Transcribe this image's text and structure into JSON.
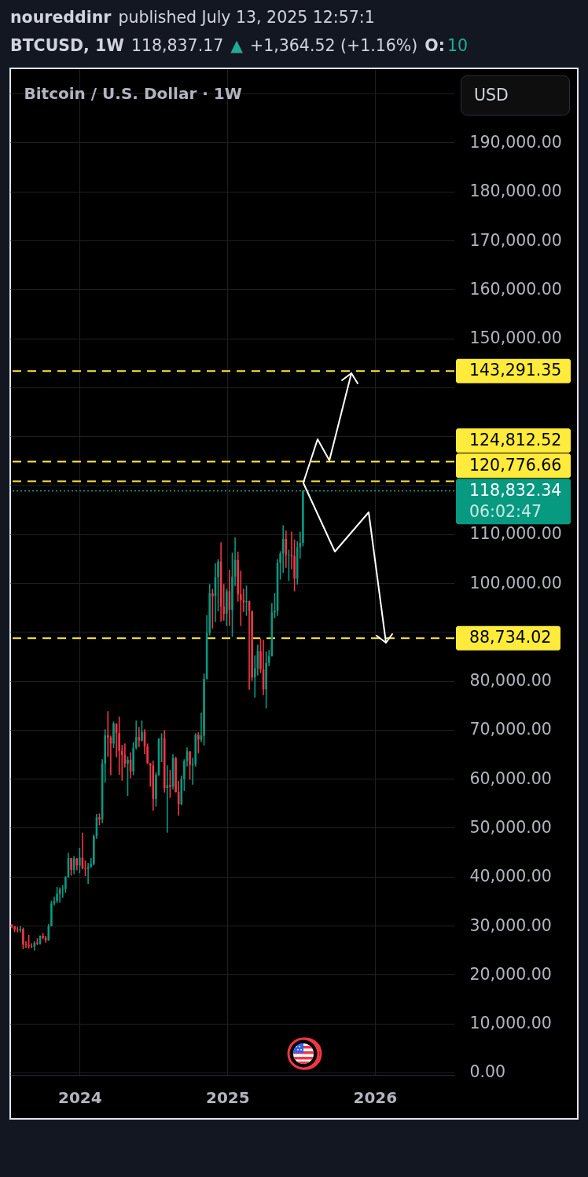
{
  "chart_data": {
    "type": "candlestick",
    "title": "Bitcoin / U.S. Dollar · 1W",
    "x": [
      "2023-07-17",
      "2023-07-24",
      "2023-07-31",
      "2023-08-07",
      "2023-08-14",
      "2023-08-21",
      "2023-08-28",
      "2023-09-04",
      "2023-09-11",
      "2023-09-18",
      "2023-09-25",
      "2023-10-02",
      "2023-10-09",
      "2023-10-16",
      "2023-10-23",
      "2023-10-30",
      "2023-11-06",
      "2023-11-13",
      "2023-11-20",
      "2023-11-27",
      "2023-12-04",
      "2023-12-11",
      "2023-12-18",
      "2023-12-25",
      "2024-01-01",
      "2024-01-08",
      "2024-01-15",
      "2024-01-22",
      "2024-01-29",
      "2024-02-05",
      "2024-02-12",
      "2024-02-19",
      "2024-02-26",
      "2024-03-04",
      "2024-03-11",
      "2024-03-18",
      "2024-03-25",
      "2024-04-01",
      "2024-04-08",
      "2024-04-15",
      "2024-04-22",
      "2024-04-29",
      "2024-05-06",
      "2024-05-13",
      "2024-05-20",
      "2024-05-27",
      "2024-06-03",
      "2024-06-10",
      "2024-06-17",
      "2024-06-24",
      "2024-07-01",
      "2024-07-08",
      "2024-07-15",
      "2024-07-22",
      "2024-07-29",
      "2024-08-05",
      "2024-08-12",
      "2024-08-19",
      "2024-08-26",
      "2024-09-02",
      "2024-09-09",
      "2024-09-16",
      "2024-09-23",
      "2024-09-30",
      "2024-10-07",
      "2024-10-14",
      "2024-10-21",
      "2024-10-28",
      "2024-11-04",
      "2024-11-11",
      "2024-11-18",
      "2024-11-25",
      "2024-12-02",
      "2024-12-09",
      "2024-12-16",
      "2024-12-23",
      "2024-12-30",
      "2025-01-06",
      "2025-01-13",
      "2025-01-20",
      "2025-01-27",
      "2025-02-03",
      "2025-02-10",
      "2025-02-17",
      "2025-02-24",
      "2025-03-03",
      "2025-03-10",
      "2025-03-17",
      "2025-03-24",
      "2025-03-31",
      "2025-04-07",
      "2025-04-14",
      "2025-04-21",
      "2025-04-28",
      "2025-05-05",
      "2025-05-12",
      "2025-05-19",
      "2025-05-26",
      "2025-06-02",
      "2025-06-09",
      "2025-06-16",
      "2025-06-23",
      "2025-06-30",
      "2025-07-07"
    ],
    "ohlc": [
      [
        30200,
        30300,
        29500,
        29800
      ],
      [
        29800,
        29900,
        28700,
        29200
      ],
      [
        29200,
        29800,
        28600,
        29000
      ],
      [
        29000,
        29900,
        28600,
        29300
      ],
      [
        29300,
        29600,
        25200,
        26100
      ],
      [
        26100,
        26800,
        25400,
        26000
      ],
      [
        26000,
        28100,
        25300,
        25800
      ],
      [
        25800,
        26400,
        25400,
        25700
      ],
      [
        25700,
        26800,
        24900,
        26500
      ],
      [
        26500,
        27400,
        26000,
        26300
      ],
      [
        26300,
        28000,
        26100,
        27900
      ],
      [
        27900,
        28500,
        27200,
        27500
      ],
      [
        27500,
        27900,
        26500,
        27000
      ],
      [
        27000,
        30300,
        26900,
        29900
      ],
      [
        29900,
        35100,
        29800,
        34500
      ],
      [
        34500,
        35900,
        34100,
        35000
      ],
      [
        35000,
        37900,
        34600,
        36500
      ],
      [
        36500,
        37800,
        34700,
        37400
      ],
      [
        37400,
        38300,
        35700,
        37500
      ],
      [
        37500,
        40100,
        36700,
        39900
      ],
      [
        39900,
        44900,
        39800,
        43800
      ],
      [
        43800,
        43800,
        40200,
        41400
      ],
      [
        41400,
        44200,
        40500,
        43700
      ],
      [
        43700,
        43800,
        41300,
        42300
      ],
      [
        42300,
        45900,
        40700,
        43900
      ],
      [
        43900,
        49000,
        41500,
        41700
      ],
      [
        41700,
        43300,
        40100,
        41600
      ],
      [
        41600,
        42800,
        38500,
        42000
      ],
      [
        42000,
        43800,
        41800,
        42600
      ],
      [
        42600,
        48600,
        42300,
        48300
      ],
      [
        48300,
        52800,
        47700,
        52100
      ],
      [
        52100,
        52900,
        50500,
        51700
      ],
      [
        51700,
        64000,
        50900,
        63100
      ],
      [
        63100,
        70100,
        59200,
        68900
      ],
      [
        68900,
        73800,
        64500,
        68400
      ],
      [
        68400,
        68800,
        60700,
        67200
      ],
      [
        67200,
        71700,
        66300,
        71300
      ],
      [
        71300,
        71300,
        64400,
        69300
      ],
      [
        69300,
        72700,
        60800,
        65700
      ],
      [
        65700,
        66900,
        59600,
        64900
      ],
      [
        64900,
        67200,
        62300,
        63100
      ],
      [
        63100,
        64600,
        56500,
        63900
      ],
      [
        63900,
        65400,
        60100,
        61500
      ],
      [
        61500,
        67500,
        60700,
        66300
      ],
      [
        66300,
        71900,
        66000,
        68500
      ],
      [
        68500,
        70600,
        66500,
        67800
      ],
      [
        67800,
        71900,
        67600,
        69600
      ],
      [
        69600,
        70100,
        65000,
        66600
      ],
      [
        66600,
        67200,
        63000,
        63200
      ],
      [
        63200,
        63200,
        58400,
        62700
      ],
      [
        62700,
        63700,
        53500,
        55900
      ],
      [
        55900,
        61300,
        54300,
        60800
      ],
      [
        60800,
        68300,
        60600,
        68200
      ],
      [
        68200,
        69300,
        63400,
        68300
      ],
      [
        68300,
        69900,
        57200,
        58100
      ],
      [
        58100,
        62700,
        49000,
        58700
      ],
      [
        58700,
        61800,
        56100,
        58400
      ],
      [
        58400,
        65000,
        57800,
        64200
      ],
      [
        64200,
        64500,
        57200,
        57300
      ],
      [
        57300,
        59600,
        52500,
        54800
      ],
      [
        54800,
        60600,
        54600,
        60000
      ],
      [
        60000,
        64000,
        57500,
        63600
      ],
      [
        63600,
        66400,
        62500,
        65600
      ],
      [
        65600,
        65600,
        59800,
        62800
      ],
      [
        62800,
        64300,
        58800,
        63000
      ],
      [
        63000,
        69300,
        62500,
        69000
      ],
      [
        69000,
        69500,
        65200,
        68000
      ],
      [
        68000,
        73500,
        67500,
        68800
      ],
      [
        68800,
        81500,
        66800,
        80400
      ],
      [
        80400,
        93400,
        80300,
        89800
      ],
      [
        89800,
        99800,
        89300,
        97900
      ],
      [
        97900,
        98800,
        90700,
        97300
      ],
      [
        97300,
        104000,
        92000,
        101200
      ],
      [
        101200,
        104900,
        94200,
        104400
      ],
      [
        104400,
        108300,
        92100,
        95200
      ],
      [
        95200,
        99800,
        92300,
        93700
      ],
      [
        93700,
        98800,
        91200,
        98300
      ],
      [
        98300,
        102700,
        91200,
        94500
      ],
      [
        94500,
        106200,
        89000,
        101300
      ],
      [
        101300,
        109300,
        99400,
        104700
      ],
      [
        104700,
        106400,
        96200,
        97700
      ],
      [
        97700,
        102500,
        91200,
        96500
      ],
      [
        96500,
        98800,
        94100,
        96100
      ],
      [
        96100,
        99500,
        93300,
        96300
      ],
      [
        96300,
        96400,
        78200,
        94300
      ],
      [
        94300,
        94300,
        80000,
        80700
      ],
      [
        80700,
        85200,
        76600,
        82600
      ],
      [
        82600,
        87400,
        81100,
        86100
      ],
      [
        86100,
        88700,
        81600,
        82400
      ],
      [
        82400,
        88400,
        77100,
        78300
      ],
      [
        78300,
        86000,
        74400,
        83700
      ],
      [
        83700,
        86300,
        83000,
        85100
      ],
      [
        85100,
        95900,
        85000,
        94000
      ],
      [
        94000,
        97900,
        92800,
        94300
      ],
      [
        94300,
        104900,
        93300,
        104100
      ],
      [
        104100,
        106500,
        100700,
        106000
      ],
      [
        106000,
        111800,
        102100,
        109000
      ],
      [
        109000,
        110700,
        103100,
        105700
      ],
      [
        105700,
        106800,
        100400,
        105800
      ],
      [
        105800,
        110500,
        102800,
        105500
      ],
      [
        105500,
        108900,
        98300,
        100900
      ],
      [
        100900,
        108500,
        99700,
        107300
      ],
      [
        107300,
        110500,
        105000,
        108200
      ],
      [
        108200,
        118950,
        107500,
        118832.34
      ]
    ],
    "colors": [
      "#f23645",
      "#f23645",
      "#f23645",
      "#089981",
      "#f23645",
      "#f23645",
      "#f23645",
      "#f23645",
      "#089981",
      "#f23645",
      "#089981",
      "#f23645",
      "#f23645",
      "#089981",
      "#089981",
      "#089981",
      "#089981",
      "#089981",
      "#089981",
      "#089981",
      "#089981",
      "#f23645",
      "#089981",
      "#f23645",
      "#089981",
      "#f23645",
      "#f23645",
      "#089981",
      "#089981",
      "#089981",
      "#089981",
      "#f23645",
      "#089981",
      "#089981",
      "#f23645",
      "#f23645",
      "#089981",
      "#f23645",
      "#f23645",
      "#f23645",
      "#f23645",
      "#089981",
      "#f23645",
      "#089981",
      "#089981",
      "#f23645",
      "#089981",
      "#f23645",
      "#f23645",
      "#f23645",
      "#f23645",
      "#089981",
      "#089981",
      "#089981",
      "#f23645",
      "#089981",
      "#f23645",
      "#089981",
      "#f23645",
      "#f23645",
      "#089981",
      "#089981",
      "#089981",
      "#f23645",
      "#089981",
      "#089981",
      "#f23645",
      "#089981",
      "#089981",
      "#089981",
      "#089981",
      "#f23645",
      "#089981",
      "#089981",
      "#f23645",
      "#f23645",
      "#089981",
      "#f23645",
      "#089981",
      "#089981",
      "#f23645",
      "#f23645",
      "#f23645",
      "#089981",
      "#f23645",
      "#f23645",
      "#089981",
      "#089981",
      "#f23645",
      "#f23645",
      "#089981",
      "#089981",
      "#089981",
      "#089981",
      "#089981",
      "#089981",
      "#089981",
      "#f23645",
      "#089981",
      "#f23645",
      "#f23645",
      "#089981",
      "#089981",
      "#089981"
    ],
    "xlim": [
      "2023-07-13",
      "2026-07-17"
    ],
    "xticks": [
      {
        "value": "2024-01-01",
        "label": "2024"
      },
      {
        "value": "2025-01-01",
        "label": "2025"
      },
      {
        "value": "2026-01-01",
        "label": "2026"
      }
    ],
    "ylim": [
      -500,
      205000
    ],
    "yticks": [
      {
        "value": 0,
        "label": "0.00"
      },
      {
        "value": 10000,
        "label": "10,000.00"
      },
      {
        "value": 20000,
        "label": "20,000.00"
      },
      {
        "value": 30000,
        "label": "30,000.00"
      },
      {
        "value": 40000,
        "label": "40,000.00"
      },
      {
        "value": 50000,
        "label": "50,000.00"
      },
      {
        "value": 60000,
        "label": "60,000.00"
      },
      {
        "value": 70000,
        "label": "70,000.00"
      },
      {
        "value": 80000,
        "label": "80,000.00"
      },
      {
        "value": 90000,
        "label": null
      },
      {
        "value": 100000,
        "label": "100,000.00"
      },
      {
        "value": 110000,
        "label": "110,000.00"
      },
      {
        "value": 120000,
        "label": null
      },
      {
        "value": 130000,
        "label": null
      },
      {
        "value": 140000,
        "label": null
      },
      {
        "value": 150000,
        "label": "150,000.00"
      },
      {
        "value": 160000,
        "label": "160,000.00"
      },
      {
        "value": 170000,
        "label": "170,000.00"
      },
      {
        "value": 180000,
        "label": "180,000.00"
      },
      {
        "value": 190000,
        "label": "190,000.00"
      },
      {
        "value": 200000,
        "label": null
      }
    ],
    "grid": true,
    "ref_lines": [
      {
        "axis": "y",
        "value": 143291.35,
        "label": "143,291.35",
        "color": "#ffeb3b",
        "line_style": "dashed"
      },
      {
        "axis": "y",
        "value": 124812.52,
        "label": "124,812.52",
        "color": "#ffeb3b",
        "line_style": "dashed"
      },
      {
        "axis": "y",
        "value": 120776.66,
        "label": "120,776.66",
        "color": "#ffeb3b",
        "line_style": "dashed"
      },
      {
        "axis": "y",
        "value": 88734.02,
        "label": "88,734.02",
        "color": "#ffeb3b",
        "line_style": "dashed"
      },
      {
        "axis": "y",
        "value": 118832.34,
        "label": "118,832.34\n06:02:47",
        "color": "#089981",
        "line_style": "dotted"
      }
    ],
    "annotations": [
      "noureddinr",
      "published July 13, 2025 12:57:1",
      "BTCUSD, 1W",
      "118,837.17",
      "▲",
      "+1,364.52 (+1.16%)",
      "O:",
      "10",
      "USD"
    ]
  }
}
